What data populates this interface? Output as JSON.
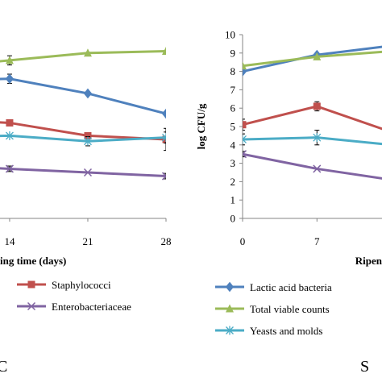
{
  "chart_data": [
    {
      "type": "line",
      "panel": "left",
      "xlabel": "ing time (days)",
      "ylabel": "",
      "x_ticks": [
        "14",
        "21",
        "28"
      ],
      "x": [
        14,
        21,
        28
      ],
      "xlim": [
        7.8,
        28
      ],
      "ylim": [
        0,
        10
      ],
      "grid": false,
      "series": [
        {
          "name": "",
          "color": "#9BBB59",
          "marker": "triangle",
          "x": [
            7,
            14,
            21,
            28
          ],
          "values": [
            8.2,
            8.6,
            9.0,
            9.1
          ],
          "errors": [
            0,
            0.25,
            0,
            0
          ]
        },
        {
          "name": "",
          "color": "#4F81BD",
          "marker": "diamond",
          "x": [
            7,
            14,
            21,
            28
          ],
          "values": [
            7.5,
            7.6,
            6.8,
            5.7
          ],
          "errors": [
            0,
            0.25,
            0,
            0
          ]
        },
        {
          "name": "Staphylococci",
          "color": "#C0504D",
          "marker": "square",
          "x": [
            7,
            14,
            21,
            28
          ],
          "values": [
            5.4,
            5.2,
            4.5,
            4.3
          ],
          "errors": [
            0,
            0,
            0,
            0.6
          ]
        },
        {
          "name": "",
          "color": "#4BACC6",
          "marker": "star",
          "x": [
            7,
            14,
            21,
            28
          ],
          "values": [
            4.4,
            4.5,
            4.2,
            4.4
          ],
          "errors": [
            0,
            0,
            0.25,
            0.3
          ]
        },
        {
          "name": "Enterobacteriaceae",
          "color": "#8064A2",
          "marker": "x",
          "x": [
            7,
            14,
            21,
            28
          ],
          "values": [
            2.9,
            2.7,
            2.5,
            2.3
          ],
          "errors": [
            0,
            0.15,
            0,
            0.15
          ]
        }
      ],
      "legend": [
        "Staphylococci",
        "Enterobacteriaceae"
      ],
      "corner_letter": "C"
    },
    {
      "type": "line",
      "panel": "right",
      "xlabel": "Ripen",
      "ylabel": "log CFU/g",
      "x_ticks": [
        "0",
        "7"
      ],
      "y_ticks": [
        "0",
        "1",
        "2",
        "3",
        "4",
        "5",
        "6",
        "7",
        "8",
        "9",
        "10"
      ],
      "xlim": [
        0,
        13.5
      ],
      "ylim": [
        0,
        10
      ],
      "grid": false,
      "series": [
        {
          "name": "Lactic acid bacteria",
          "color": "#4F81BD",
          "marker": "diamond",
          "x": [
            0,
            7,
            14
          ],
          "values": [
            8.0,
            8.9,
            9.4
          ],
          "errors": [
            0,
            0,
            0
          ]
        },
        {
          "name": "Total viable counts",
          "color": "#9BBB59",
          "marker": "triangle",
          "x": [
            0,
            7,
            14
          ],
          "values": [
            8.3,
            8.8,
            9.1
          ],
          "errors": [
            0,
            0,
            0
          ]
        },
        {
          "name": "",
          "color": "#C0504D",
          "marker": "square",
          "x": [
            0,
            7,
            14
          ],
          "values": [
            5.1,
            6.1,
            4.7
          ],
          "errors": [
            0.3,
            0.25,
            0
          ]
        },
        {
          "name": "Yeasts and molds",
          "color": "#4BACC6",
          "marker": "star",
          "x": [
            0,
            7,
            14
          ],
          "values": [
            4.3,
            4.4,
            4.0
          ],
          "errors": [
            0.3,
            0.4,
            0
          ]
        },
        {
          "name": "",
          "color": "#8064A2",
          "marker": "x",
          "x": [
            0,
            7,
            14
          ],
          "values": [
            3.5,
            2.7,
            2.1
          ],
          "errors": [
            0.15,
            0,
            0
          ]
        }
      ],
      "legend": [
        "Lactic acid bacteria",
        "Total viable counts",
        "Yeasts and molds"
      ],
      "corner_letter": "S"
    }
  ]
}
